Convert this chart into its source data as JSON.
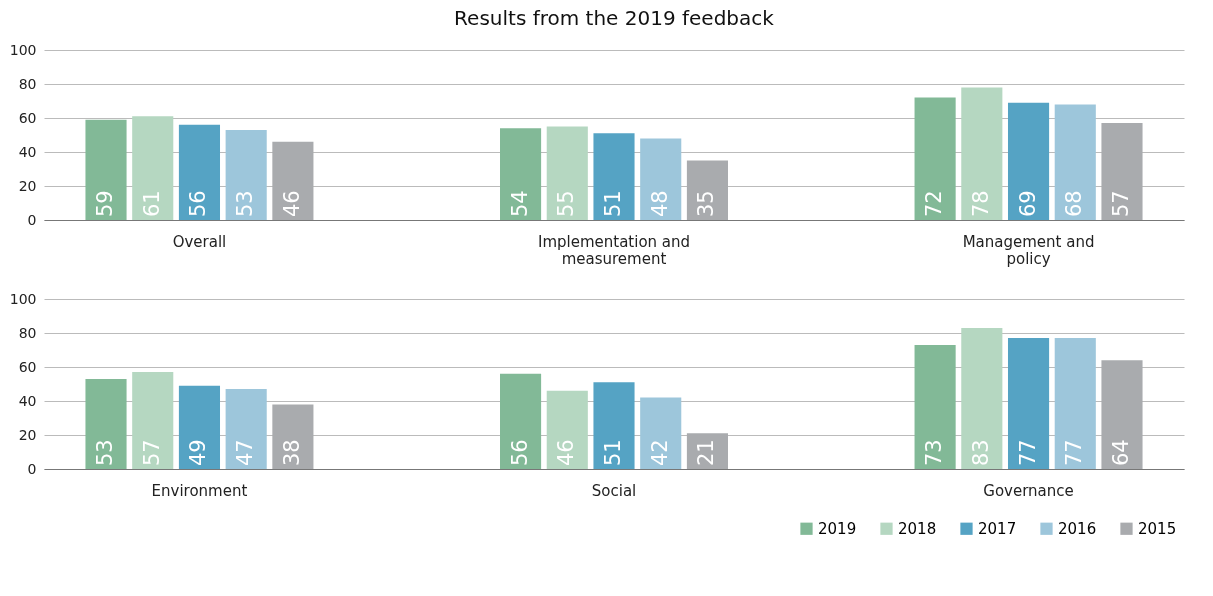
{
  "chart_data": [
    {
      "type": "bar",
      "title": "Results from the 2019 feedback",
      "categories": [
        "Overall",
        "Implementation and measurement",
        "Management and policy"
      ],
      "series": [
        {
          "color": "#82b997",
          "values": [
            59,
            54,
            72
          ]
        },
        {
          "color": "#b5d7c1",
          "values": [
            61,
            55,
            78
          ]
        },
        {
          "color": "#55a3c4",
          "values": [
            56,
            51,
            69
          ]
        },
        {
          "color": "#9dc6db",
          "values": [
            53,
            48,
            68
          ]
        },
        {
          "color": "#a9abae",
          "values": [
            46,
            35,
            57
          ]
        }
      ],
      "ylim": [
        0,
        100
      ],
      "yticks": [
        0,
        20,
        40,
        60,
        80,
        100
      ],
      "grid": "y",
      "data_labels": true
    },
    {
      "type": "bar",
      "categories": [
        "Environment",
        "Social",
        "Governance"
      ],
      "series": [
        {
          "name": "2019",
          "color": "#82b997",
          "values": [
            53,
            56,
            73
          ]
        },
        {
          "name": "2018",
          "color": "#b5d7c1",
          "values": [
            57,
            46,
            83
          ]
        },
        {
          "name": "2017",
          "color": "#55a3c4",
          "values": [
            49,
            51,
            77
          ]
        },
        {
          "name": "2016",
          "color": "#9dc6db",
          "values": [
            47,
            42,
            77
          ]
        },
        {
          "name": "2015",
          "color": "#a9abae",
          "values": [
            38,
            21,
            64
          ]
        }
      ],
      "ylim": [
        0,
        100
      ],
      "yticks": [
        0,
        20,
        40,
        60,
        80,
        100
      ],
      "grid": "y",
      "data_labels": true,
      "legend": "bottom right"
    }
  ]
}
